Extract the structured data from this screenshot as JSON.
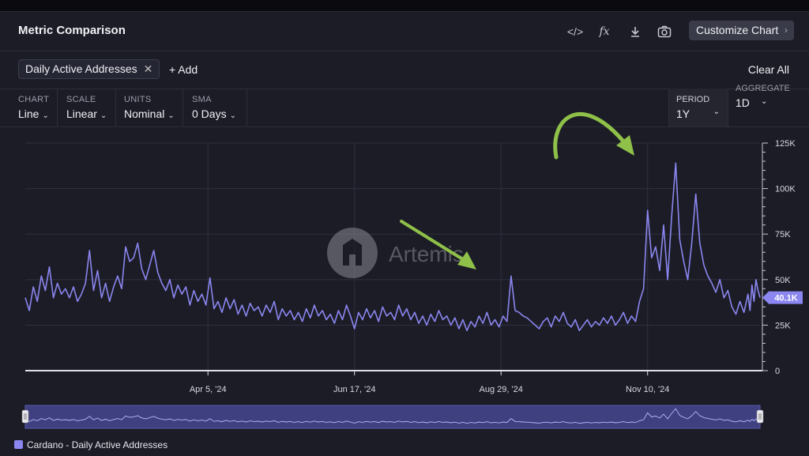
{
  "header": {
    "title": "Metric Comparison",
    "customize_label": "Customize Chart",
    "icons": [
      "code-icon",
      "formula-icon",
      "download-icon",
      "camera-icon"
    ]
  },
  "metrics": {
    "chips": [
      {
        "label": "Daily Active Addresses"
      }
    ],
    "add_label": "+ Add",
    "clear_label": "Clear All"
  },
  "controls": {
    "chart": {
      "label": "CHART",
      "value": "Line"
    },
    "scale": {
      "label": "SCALE",
      "value": "Linear"
    },
    "units": {
      "label": "UNITS",
      "value": "Nominal"
    },
    "sma": {
      "label": "SMA",
      "value": "0 Days"
    },
    "period": {
      "label": "PERIOD",
      "value": "1Y"
    },
    "aggregate": {
      "label": "AGGREGATE",
      "value": "1D"
    }
  },
  "watermark": "Artemis",
  "legend_label": "Cardano - Daily Active Addresses",
  "colors": {
    "series": "#8b86f0",
    "arrow": "#8fc049",
    "bg": "#1b1c25"
  },
  "chart_data": {
    "type": "line",
    "ylim": [
      0,
      125000
    ],
    "yticks": [
      "0",
      "25K",
      "50K",
      "75K",
      "100K",
      "125K"
    ],
    "xticks": [
      "Apr 5, '24",
      "Jun 17, '24",
      "Aug 29, '24",
      "Nov 10, '24"
    ],
    "current_value_label": "40.1K",
    "x_range": [
      "2024-01-05",
      "2025-01-05"
    ],
    "series": [
      {
        "name": "Cardano - Daily Active Addresses",
        "points": [
          [
            "2024-01-05",
            40000
          ],
          [
            "2024-01-07",
            33000
          ],
          [
            "2024-01-09",
            46000
          ],
          [
            "2024-01-11",
            38000
          ],
          [
            "2024-01-13",
            52000
          ],
          [
            "2024-01-15",
            44000
          ],
          [
            "2024-01-17",
            57000
          ],
          [
            "2024-01-19",
            40000
          ],
          [
            "2024-01-21",
            48000
          ],
          [
            "2024-01-23",
            42000
          ],
          [
            "2024-01-25",
            45000
          ],
          [
            "2024-01-27",
            40000
          ],
          [
            "2024-01-29",
            46000
          ],
          [
            "2024-01-31",
            38000
          ],
          [
            "2024-02-02",
            42000
          ],
          [
            "2024-02-04",
            48000
          ],
          [
            "2024-02-06",
            66000
          ],
          [
            "2024-02-08",
            44000
          ],
          [
            "2024-02-10",
            55000
          ],
          [
            "2024-02-12",
            40000
          ],
          [
            "2024-02-14",
            48000
          ],
          [
            "2024-02-16",
            38000
          ],
          [
            "2024-02-18",
            46000
          ],
          [
            "2024-02-20",
            52000
          ],
          [
            "2024-02-22",
            45000
          ],
          [
            "2024-02-24",
            68000
          ],
          [
            "2024-02-26",
            60000
          ],
          [
            "2024-02-28",
            62000
          ],
          [
            "2024-03-01",
            70000
          ],
          [
            "2024-03-03",
            56000
          ],
          [
            "2024-03-05",
            50000
          ],
          [
            "2024-03-07",
            58000
          ],
          [
            "2024-03-09",
            66000
          ],
          [
            "2024-03-11",
            54000
          ],
          [
            "2024-03-13",
            48000
          ],
          [
            "2024-03-15",
            44000
          ],
          [
            "2024-03-17",
            50000
          ],
          [
            "2024-03-19",
            40000
          ],
          [
            "2024-03-21",
            47000
          ],
          [
            "2024-03-23",
            42000
          ],
          [
            "2024-03-25",
            46000
          ],
          [
            "2024-03-27",
            36000
          ],
          [
            "2024-03-29",
            44000
          ],
          [
            "2024-03-31",
            38000
          ],
          [
            "2024-04-02",
            42000
          ],
          [
            "2024-04-04",
            36000
          ],
          [
            "2024-04-06",
            51000
          ],
          [
            "2024-04-08",
            34000
          ],
          [
            "2024-04-10",
            38000
          ],
          [
            "2024-04-12",
            32000
          ],
          [
            "2024-04-14",
            40000
          ],
          [
            "2024-04-16",
            34000
          ],
          [
            "2024-04-18",
            39000
          ],
          [
            "2024-04-20",
            31000
          ],
          [
            "2024-04-22",
            36000
          ],
          [
            "2024-04-24",
            30000
          ],
          [
            "2024-04-26",
            37000
          ],
          [
            "2024-04-28",
            33000
          ],
          [
            "2024-04-30",
            35000
          ],
          [
            "2024-05-02",
            30000
          ],
          [
            "2024-05-04",
            36000
          ],
          [
            "2024-05-06",
            32000
          ],
          [
            "2024-05-08",
            38000
          ],
          [
            "2024-05-10",
            28000
          ],
          [
            "2024-05-12",
            34000
          ],
          [
            "2024-05-14",
            30000
          ],
          [
            "2024-05-16",
            33000
          ],
          [
            "2024-05-18",
            28000
          ],
          [
            "2024-05-20",
            32000
          ],
          [
            "2024-05-22",
            27000
          ],
          [
            "2024-05-24",
            34000
          ],
          [
            "2024-05-26",
            29000
          ],
          [
            "2024-05-28",
            36000
          ],
          [
            "2024-05-30",
            30000
          ],
          [
            "2024-06-01",
            33000
          ],
          [
            "2024-06-03",
            28000
          ],
          [
            "2024-06-05",
            31000
          ],
          [
            "2024-06-07",
            26000
          ],
          [
            "2024-06-09",
            33000
          ],
          [
            "2024-06-11",
            28000
          ],
          [
            "2024-06-13",
            36000
          ],
          [
            "2024-06-15",
            30000
          ],
          [
            "2024-06-17",
            23000
          ],
          [
            "2024-06-19",
            32000
          ],
          [
            "2024-06-21",
            28000
          ],
          [
            "2024-06-23",
            34000
          ],
          [
            "2024-06-25",
            29000
          ],
          [
            "2024-06-27",
            33000
          ],
          [
            "2024-06-29",
            27000
          ],
          [
            "2024-07-01",
            35000
          ],
          [
            "2024-07-03",
            30000
          ],
          [
            "2024-07-05",
            32000
          ],
          [
            "2024-07-07",
            28000
          ],
          [
            "2024-07-09",
            36000
          ],
          [
            "2024-07-11",
            30000
          ],
          [
            "2024-07-13",
            34000
          ],
          [
            "2024-07-15",
            28000
          ],
          [
            "2024-07-17",
            32000
          ],
          [
            "2024-07-19",
            26000
          ],
          [
            "2024-07-21",
            30000
          ],
          [
            "2024-07-23",
            25000
          ],
          [
            "2024-07-25",
            31000
          ],
          [
            "2024-07-27",
            27000
          ],
          [
            "2024-07-29",
            33000
          ],
          [
            "2024-07-31",
            28000
          ],
          [
            "2024-08-02",
            30000
          ],
          [
            "2024-08-04",
            25000
          ],
          [
            "2024-08-06",
            29000
          ],
          [
            "2024-08-08",
            23000
          ],
          [
            "2024-08-10",
            28000
          ],
          [
            "2024-08-12",
            22000
          ],
          [
            "2024-08-14",
            27000
          ],
          [
            "2024-08-16",
            24000
          ],
          [
            "2024-08-18",
            30000
          ],
          [
            "2024-08-20",
            26000
          ],
          [
            "2024-08-22",
            32000
          ],
          [
            "2024-08-24",
            25000
          ],
          [
            "2024-08-26",
            28000
          ],
          [
            "2024-08-28",
            24000
          ],
          [
            "2024-08-30",
            30000
          ],
          [
            "2024-09-01",
            27000
          ],
          [
            "2024-09-03",
            52000
          ],
          [
            "2024-09-05",
            33000
          ],
          [
            "2024-09-07",
            32000
          ],
          [
            "2024-09-09",
            30000
          ],
          [
            "2024-09-11",
            29000
          ],
          [
            "2024-09-13",
            27000
          ],
          [
            "2024-09-15",
            25000
          ],
          [
            "2024-09-17",
            23000
          ],
          [
            "2024-09-19",
            27000
          ],
          [
            "2024-09-21",
            29000
          ],
          [
            "2024-09-23",
            24000
          ],
          [
            "2024-09-25",
            30000
          ],
          [
            "2024-09-27",
            27000
          ],
          [
            "2024-09-29",
            32000
          ],
          [
            "2024-10-01",
            26000
          ],
          [
            "2024-10-03",
            24000
          ],
          [
            "2024-10-05",
            28000
          ],
          [
            "2024-10-07",
            22000
          ],
          [
            "2024-10-09",
            25000
          ],
          [
            "2024-10-11",
            28000
          ],
          [
            "2024-10-13",
            24000
          ],
          [
            "2024-10-15",
            27000
          ],
          [
            "2024-10-17",
            25000
          ],
          [
            "2024-10-19",
            29000
          ],
          [
            "2024-10-21",
            26000
          ],
          [
            "2024-10-23",
            30000
          ],
          [
            "2024-10-25",
            25000
          ],
          [
            "2024-10-27",
            28000
          ],
          [
            "2024-10-29",
            32000
          ],
          [
            "2024-10-31",
            26000
          ],
          [
            "2024-11-02",
            30000
          ],
          [
            "2024-11-04",
            27000
          ],
          [
            "2024-11-06",
            38000
          ],
          [
            "2024-11-08",
            45000
          ],
          [
            "2024-11-10",
            88000
          ],
          [
            "2024-11-12",
            62000
          ],
          [
            "2024-11-14",
            68000
          ],
          [
            "2024-11-16",
            55000
          ],
          [
            "2024-11-18",
            80000
          ],
          [
            "2024-11-20",
            50000
          ],
          [
            "2024-11-22",
            85000
          ],
          [
            "2024-11-24",
            114000
          ],
          [
            "2024-11-26",
            72000
          ],
          [
            "2024-11-28",
            60000
          ],
          [
            "2024-11-30",
            50000
          ],
          [
            "2024-12-02",
            70000
          ],
          [
            "2024-12-04",
            97000
          ],
          [
            "2024-12-06",
            70000
          ],
          [
            "2024-12-08",
            58000
          ],
          [
            "2024-12-10",
            52000
          ],
          [
            "2024-12-12",
            48000
          ],
          [
            "2024-12-14",
            43000
          ],
          [
            "2024-12-16",
            50000
          ],
          [
            "2024-12-18",
            40000
          ],
          [
            "2024-12-20",
            44000
          ],
          [
            "2024-12-22",
            35000
          ],
          [
            "2024-12-24",
            31000
          ],
          [
            "2024-12-26",
            38000
          ],
          [
            "2024-12-28",
            32000
          ],
          [
            "2024-12-30",
            42000
          ],
          [
            "2024-12-31",
            33000
          ],
          [
            "2025-01-01",
            47000
          ],
          [
            "2025-01-02",
            38000
          ],
          [
            "2025-01-03",
            50000
          ],
          [
            "2025-01-04",
            44000
          ],
          [
            "2025-01-05",
            40100
          ]
        ]
      }
    ]
  }
}
